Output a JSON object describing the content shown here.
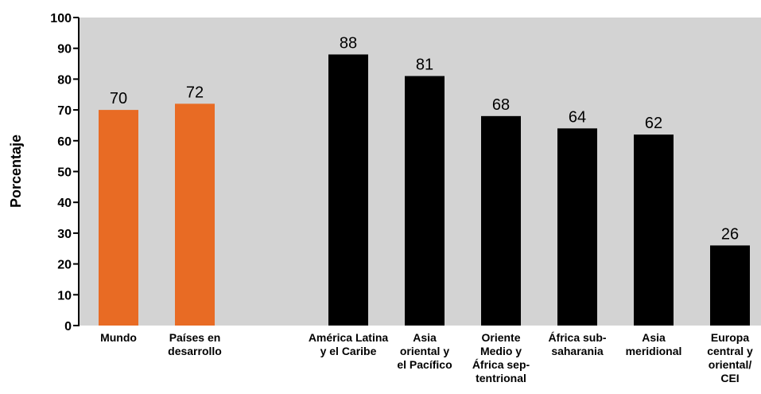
{
  "chart_data": {
    "type": "bar",
    "ylabel": "Porcentaje",
    "ylim": [
      0,
      100
    ],
    "yticks": [
      0,
      10,
      20,
      30,
      40,
      50,
      60,
      70,
      80,
      90,
      100
    ],
    "grid": false,
    "categories": [
      {
        "label": [
          "Mundo"
        ],
        "value": 70,
        "color": "#e86b24"
      },
      {
        "label": [
          "Países en",
          "desarrollo"
        ],
        "value": 72,
        "color": "#e86b24"
      },
      {
        "label": [
          "América Latina",
          "y el Caribe"
        ],
        "value": 88,
        "color": "#000000"
      },
      {
        "label": [
          "Asia",
          "oriental y",
          "el Pacífico"
        ],
        "value": 81,
        "color": "#000000"
      },
      {
        "label": [
          "Oriente",
          "Medio y",
          "África sep-",
          "tentrional"
        ],
        "value": 68,
        "color": "#000000"
      },
      {
        "label": [
          "África sub-",
          "saharania"
        ],
        "value": 64,
        "color": "#000000"
      },
      {
        "label": [
          "Asia",
          "meridional"
        ],
        "value": 62,
        "color": "#000000"
      },
      {
        "label": [
          "Europa",
          "central y",
          "oriental/",
          "CEI"
        ],
        "value": 26,
        "color": "#000000"
      }
    ],
    "plot_background": "#d3d3d3"
  }
}
